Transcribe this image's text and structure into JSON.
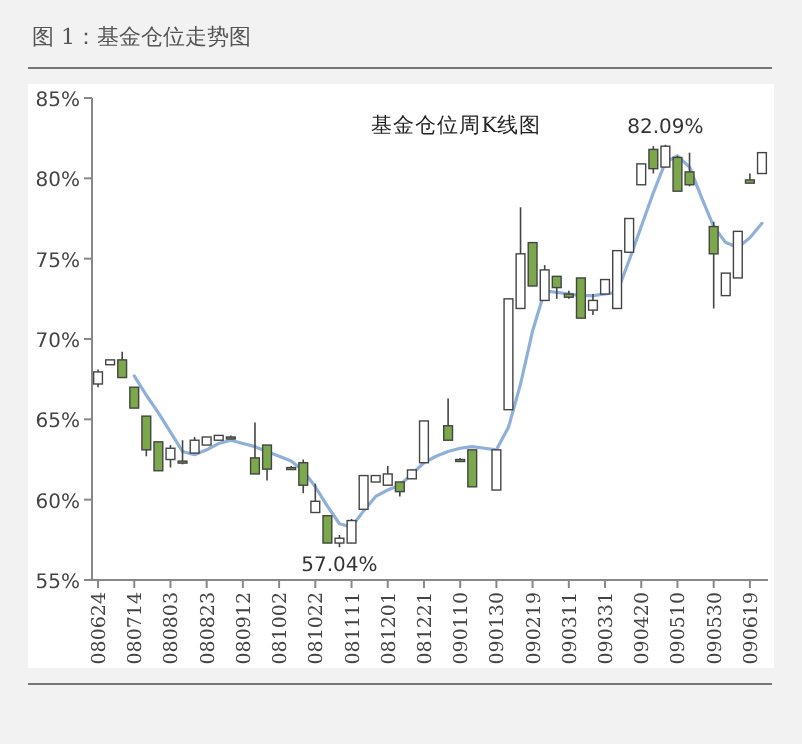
{
  "chart_data": {
    "type": "candlestick",
    "title": "图 1：基金仓位走势图",
    "subtitle": "基金仓位周K线图",
    "categories": [
      "080624",
      null,
      null,
      "080714",
      null,
      null,
      "080803",
      null,
      null,
      "080823",
      null,
      null,
      "080912",
      null,
      null,
      "081002",
      null,
      null,
      "081022",
      null,
      null,
      "081111",
      null,
      null,
      "081201",
      null,
      null,
      "081221",
      null,
      null,
      "090110",
      null,
      null,
      "090130",
      null,
      null,
      "090219",
      null,
      null,
      "090311",
      null,
      null,
      "090331",
      null,
      null,
      "090420",
      null,
      null,
      "090510",
      null,
      null,
      "090530",
      null,
      null,
      "090619",
      null
    ],
    "ohlc": [
      [
        67.2,
        68.1,
        67.0,
        67.95
      ],
      [
        68.4,
        68.7,
        68.4,
        68.7
      ],
      [
        68.7,
        69.2,
        67.6,
        67.6
      ],
      [
        67.0,
        67.0,
        65.7,
        65.7
      ],
      [
        65.2,
        65.2,
        62.7,
        63.1
      ],
      [
        63.6,
        63.6,
        61.8,
        61.8
      ],
      [
        62.5,
        63.4,
        62.0,
        63.2
      ],
      [
        62.4,
        63.7,
        62.2,
        62.3
      ],
      [
        62.9,
        63.9,
        62.9,
        63.7
      ],
      [
        63.4,
        63.9,
        63.4,
        63.9
      ],
      [
        63.7,
        64.0,
        63.7,
        64.0
      ],
      [
        63.9,
        64.0,
        63.8,
        63.8
      ],
      null,
      [
        62.6,
        64.8,
        61.6,
        61.6
      ],
      [
        63.4,
        63.4,
        61.2,
        61.9
      ],
      null,
      [
        62.0,
        62.1,
        61.9,
        62.0
      ],
      [
        62.3,
        62.5,
        60.4,
        60.9
      ],
      [
        59.2,
        61.0,
        59.2,
        59.9
      ],
      [
        59.0,
        59.0,
        57.3,
        57.3
      ],
      [
        57.3,
        57.8,
        57.04,
        57.6
      ],
      [
        57.3,
        58.8,
        57.3,
        58.7
      ],
      [
        59.4,
        61.5,
        59.4,
        61.5
      ],
      [
        61.1,
        61.5,
        61.1,
        61.5
      ],
      [
        60.9,
        62.1,
        60.9,
        61.6
      ],
      [
        61.1,
        61.1,
        60.2,
        60.5
      ],
      [
        61.3,
        61.9,
        61.3,
        61.85
      ],
      [
        62.3,
        64.9,
        62.3,
        64.9
      ],
      null,
      [
        64.6,
        66.3,
        63.7,
        63.7
      ],
      [
        62.5,
        62.6,
        62.4,
        62.4
      ],
      [
        63.1,
        63.1,
        60.8,
        60.8
      ],
      null,
      [
        60.6,
        63.1,
        60.6,
        63.1
      ],
      [
        65.6,
        72.5,
        65.6,
        72.5
      ],
      [
        71.9,
        78.2,
        71.9,
        75.3
      ],
      [
        76.0,
        76.0,
        73.3,
        73.3
      ],
      [
        72.4,
        74.6,
        72.4,
        74.3
      ],
      [
        73.9,
        73.9,
        72.5,
        73.2
      ],
      [
        72.8,
        73.0,
        72.5,
        72.6
      ],
      [
        73.8,
        73.8,
        71.3,
        71.3
      ],
      [
        71.8,
        72.8,
        71.5,
        72.4
      ],
      [
        72.8,
        73.7,
        72.8,
        73.7
      ],
      [
        71.9,
        75.5,
        71.9,
        75.5
      ],
      [
        75.4,
        77.5,
        75.4,
        77.5
      ],
      [
        79.6,
        80.9,
        79.6,
        80.9
      ],
      [
        81.8,
        82.0,
        80.3,
        80.6
      ],
      [
        80.7,
        82.09,
        80.7,
        82.0
      ],
      [
        81.3,
        81.4,
        79.2,
        79.2
      ],
      [
        80.4,
        81.6,
        79.5,
        79.6
      ],
      null,
      [
        77.0,
        77.3,
        71.9,
        75.3
      ],
      [
        72.7,
        74.1,
        72.7,
        74.1
      ],
      [
        73.8,
        76.7,
        73.8,
        76.7
      ],
      [
        79.9,
        80.3,
        79.7,
        79.7
      ],
      [
        80.3,
        81.6,
        80.3,
        81.6
      ]
    ],
    "colors": [
      "#ffffff",
      "#ffffff",
      "#7aa84a",
      "#7aa84a",
      "#7aa84a",
      "#7aa84a",
      "#ffffff",
      "#7aa84a",
      "#ffffff",
      "#ffffff",
      "#ffffff",
      "#7aa84a",
      null,
      "#7aa84a",
      "#7aa84a",
      null,
      "#7aa84a",
      "#7aa84a",
      "#ffffff",
      "#7aa84a",
      "#ffffff",
      "#ffffff",
      "#ffffff",
      "#ffffff",
      "#ffffff",
      "#7aa84a",
      "#ffffff",
      "#ffffff",
      null,
      "#7aa84a",
      "#7aa84a",
      "#7aa84a",
      null,
      "#ffffff",
      "#ffffff",
      "#ffffff",
      "#7aa84a",
      "#ffffff",
      "#7aa84a",
      "#7aa84a",
      "#7aa84a",
      "#ffffff",
      "#ffffff",
      "#ffffff",
      "#ffffff",
      "#ffffff",
      "#7aa84a",
      "#ffffff",
      "#7aa84a",
      "#7aa84a",
      null,
      "#7aa84a",
      "#ffffff",
      "#ffffff",
      "#7aa84a",
      "#ffffff"
    ],
    "series": [
      {
        "type": "line",
        "color": "#8fb0d8",
        "values": [
          null,
          null,
          null,
          67.7,
          66.5,
          65.4,
          64.2,
          63.0,
          62.8,
          63.1,
          63.5,
          63.7,
          63.5,
          63.3,
          63.0,
          62.7,
          62.4,
          61.8,
          60.8,
          59.6,
          58.5,
          58.3,
          59.3,
          60.2,
          60.6,
          60.9,
          61.6,
          62.3,
          62.7,
          63.0,
          63.2,
          63.3,
          63.2,
          63.1,
          64.5,
          67.2,
          70.5,
          73.0,
          72.9,
          72.8,
          72.7,
          72.7,
          72.8,
          72.9,
          74.9,
          77.0,
          79.1,
          81.0,
          81.4,
          80.7,
          78.8,
          77.0,
          76.0,
          75.7,
          76.3,
          77.2
        ]
      }
    ],
    "ylim": [
      55,
      85
    ],
    "yticks": [
      {
        "value": 55,
        "label": "55%"
      },
      {
        "value": 60,
        "label": "60%"
      },
      {
        "value": 65,
        "label": "65%"
      },
      {
        "value": 70,
        "label": "70%"
      },
      {
        "value": 75,
        "label": "75%"
      },
      {
        "value": 80,
        "label": "80%"
      },
      {
        "value": 85,
        "label": "85%"
      }
    ],
    "annotations": [
      {
        "text": "57.04%",
        "y": 57.04
      },
      {
        "text": "82.09%",
        "y": 82.09
      }
    ]
  }
}
